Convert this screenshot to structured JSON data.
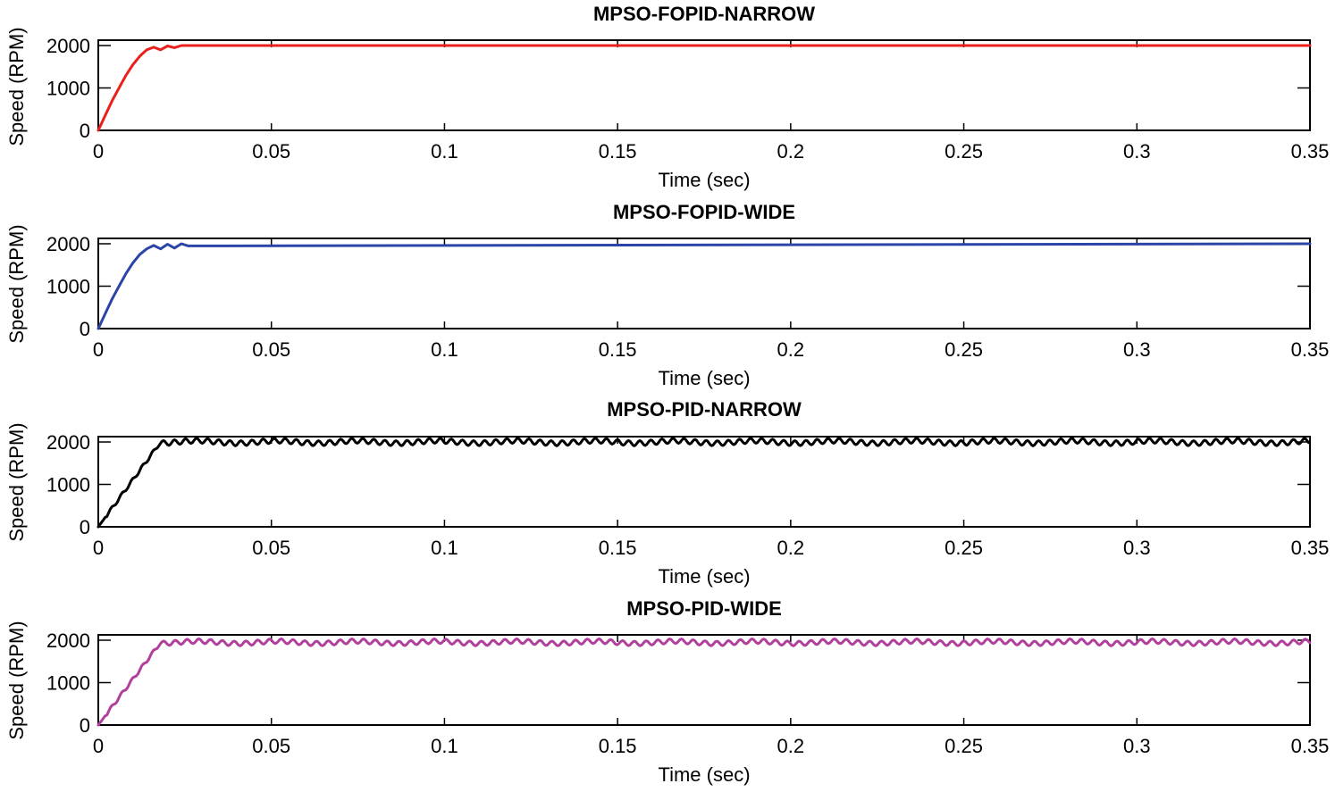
{
  "chart_data": [
    {
      "type": "line",
      "title": "MPSO-FOPID-NARROW",
      "xlabel": "Time (sec)",
      "ylabel": "Speed (RPM)",
      "xlim": [
        0,
        0.35
      ],
      "ylim": [
        0,
        2000
      ],
      "xticks": [
        0,
        0.05,
        0.1,
        0.15,
        0.2,
        0.25,
        0.3,
        0.35
      ],
      "xtick_labels": [
        "0",
        "0.05",
        "0.1",
        "0.15",
        "0.2",
        "0.25",
        "0.3",
        "0.35"
      ],
      "yticks": [
        0,
        1000,
        2000
      ],
      "ytick_labels": [
        "0",
        "1000",
        "2000"
      ],
      "grid": false,
      "series": [
        {
          "name": "MPSO-FOPID-NARROW",
          "color": "#e8211c",
          "x": [
            0,
            0.002,
            0.004,
            0.006,
            0.008,
            0.01,
            0.012,
            0.014,
            0.016,
            0.018,
            0.02,
            0.022,
            0.024,
            0.35
          ],
          "y": [
            0,
            350,
            700,
            1000,
            1300,
            1550,
            1750,
            1900,
            1960,
            1900,
            1990,
            1950,
            2000,
            2000
          ]
        }
      ]
    },
    {
      "type": "line",
      "title": "MPSO-FOPID-WIDE",
      "xlabel": "Time (sec)",
      "ylabel": "Speed (RPM)",
      "xlim": [
        0,
        0.35
      ],
      "ylim": [
        0,
        2000
      ],
      "xticks": [
        0,
        0.05,
        0.1,
        0.15,
        0.2,
        0.25,
        0.3,
        0.35
      ],
      "xtick_labels": [
        "0",
        "0.05",
        "0.1",
        "0.15",
        "0.2",
        "0.25",
        "0.3",
        "0.35"
      ],
      "yticks": [
        0,
        1000,
        2000
      ],
      "ytick_labels": [
        "0",
        "1000",
        "2000"
      ],
      "grid": false,
      "series": [
        {
          "name": "MPSO-FOPID-WIDE",
          "color": "#2b44a8",
          "x": [
            0,
            0.002,
            0.004,
            0.006,
            0.008,
            0.01,
            0.012,
            0.014,
            0.016,
            0.018,
            0.02,
            0.022,
            0.024,
            0.026,
            0.35
          ],
          "y": [
            0,
            350,
            700,
            1000,
            1300,
            1550,
            1750,
            1880,
            1960,
            1880,
            1990,
            1900,
            2000,
            1950,
            2000
          ]
        }
      ]
    },
    {
      "type": "line",
      "title": "MPSO-PID-NARROW",
      "xlabel": "Time (sec)",
      "ylabel": "Speed (RPM)",
      "xlim": [
        0,
        0.35
      ],
      "ylim": [
        0,
        2000
      ],
      "xticks": [
        0,
        0.05,
        0.1,
        0.15,
        0.2,
        0.25,
        0.3,
        0.35
      ],
      "xtick_labels": [
        "0",
        "0.05",
        "0.1",
        "0.15",
        "0.2",
        "0.25",
        "0.3",
        "0.35"
      ],
      "yticks": [
        0,
        1000,
        2000
      ],
      "ytick_labels": [
        "0",
        "1000",
        "2000"
      ],
      "grid": false,
      "series": [
        {
          "name": "MPSO-PID-NARROW",
          "color": "#000000",
          "rise_end_x": 0.018,
          "steady_value": 2000,
          "ripple_amplitude": 60,
          "ripple_period": 0.0032
        }
      ]
    },
    {
      "type": "line",
      "title": "MPSO-PID-WIDE",
      "xlabel": "Time (sec)",
      "ylabel": "Speed (RPM)",
      "xlim": [
        0,
        0.35
      ],
      "ylim": [
        0,
        2000
      ],
      "xticks": [
        0,
        0.05,
        0.1,
        0.15,
        0.2,
        0.25,
        0.3,
        0.35
      ],
      "xtick_labels": [
        "0",
        "0.05",
        "0.1",
        "0.15",
        "0.2",
        "0.25",
        "0.3",
        "0.35"
      ],
      "yticks": [
        0,
        1000,
        2000
      ],
      "ytick_labels": [
        "0",
        "1000",
        "2000"
      ],
      "grid": false,
      "series": [
        {
          "name": "MPSO-PID-WIDE",
          "color": "#b0409c",
          "rise_end_x": 0.018,
          "steady_value": 1950,
          "ripple_amplitude": 55,
          "ripple_period": 0.0034
        }
      ]
    }
  ]
}
